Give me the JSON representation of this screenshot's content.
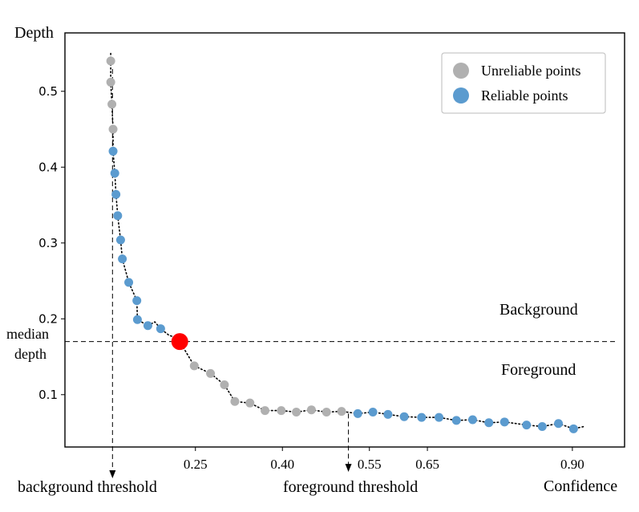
{
  "chart_data": {
    "type": "scatter",
    "title": "",
    "xlabel": "Confidence",
    "ylabel": "Depth",
    "xlim": [
      0.025,
      0.99
    ],
    "ylim": [
      0.031,
      0.577
    ],
    "x_ticks": [
      {
        "value": 0.25,
        "label": "0.25"
      },
      {
        "value": 0.4,
        "label": "0.40"
      },
      {
        "value": 0.55,
        "label": "0.55"
      },
      {
        "value": 0.65,
        "label": "0.65"
      },
      {
        "value": 0.9,
        "label": "0.90"
      }
    ],
    "y_ticks": [
      0.1,
      0.2,
      0.3,
      0.4,
      0.5
    ],
    "y_tick_labels": [
      "0.1",
      "0.2",
      "0.3",
      "0.4",
      "0.5"
    ],
    "legend": {
      "position": "top-right",
      "entries": [
        {
          "label": "Unreliable points",
          "color": "#b0b0b0"
        },
        {
          "label": "Reliable points",
          "color": "#5b9bcf"
        }
      ]
    },
    "series": [
      {
        "name": "Unreliable points",
        "color": "#b0b0b0",
        "points": [
          [
            0.104,
            0.54
          ],
          [
            0.104,
            0.512
          ],
          [
            0.106,
            0.483
          ],
          [
            0.108,
            0.45
          ],
          [
            0.248,
            0.138
          ],
          [
            0.276,
            0.128
          ],
          [
            0.3,
            0.113
          ],
          [
            0.318,
            0.091
          ],
          [
            0.344,
            0.089
          ],
          [
            0.37,
            0.079
          ],
          [
            0.398,
            0.079
          ],
          [
            0.424,
            0.077
          ],
          [
            0.45,
            0.08
          ],
          [
            0.476,
            0.077
          ],
          [
            0.502,
            0.078
          ]
        ]
      },
      {
        "name": "Reliable points",
        "color": "#5b9bcf",
        "points": [
          [
            0.108,
            0.421
          ],
          [
            0.111,
            0.392
          ],
          [
            0.113,
            0.364
          ],
          [
            0.116,
            0.336
          ],
          [
            0.121,
            0.304
          ],
          [
            0.124,
            0.279
          ],
          [
            0.135,
            0.248
          ],
          [
            0.149,
            0.224
          ],
          [
            0.15,
            0.199
          ],
          [
            0.168,
            0.191
          ],
          [
            0.19,
            0.187
          ],
          [
            0.53,
            0.075
          ],
          [
            0.556,
            0.077
          ],
          [
            0.582,
            0.074
          ],
          [
            0.61,
            0.071
          ],
          [
            0.64,
            0.07
          ],
          [
            0.67,
            0.07
          ],
          [
            0.7,
            0.066
          ],
          [
            0.728,
            0.067
          ],
          [
            0.756,
            0.063
          ],
          [
            0.783,
            0.064
          ],
          [
            0.821,
            0.06
          ],
          [
            0.848,
            0.058
          ],
          [
            0.876,
            0.062
          ],
          [
            0.902,
            0.055
          ]
        ]
      }
    ],
    "median_point": {
      "x": 0.223,
      "y": 0.17,
      "color": "#ff0000"
    },
    "median_depth": 0.17,
    "background_threshold": 0.107,
    "foreground_threshold": 0.5,
    "curve": [
      [
        0.104,
        0.55
      ],
      [
        0.104,
        0.54
      ],
      [
        0.104,
        0.512
      ],
      [
        0.106,
        0.483
      ],
      [
        0.108,
        0.45
      ],
      [
        0.108,
        0.421
      ],
      [
        0.111,
        0.392
      ],
      [
        0.113,
        0.364
      ],
      [
        0.116,
        0.336
      ],
      [
        0.121,
        0.304
      ],
      [
        0.124,
        0.279
      ],
      [
        0.135,
        0.248
      ],
      [
        0.149,
        0.224
      ],
      [
        0.15,
        0.199
      ],
      [
        0.168,
        0.191
      ],
      [
        0.18,
        0.196
      ],
      [
        0.19,
        0.187
      ],
      [
        0.205,
        0.178
      ],
      [
        0.215,
        0.176
      ],
      [
        0.223,
        0.17
      ],
      [
        0.248,
        0.138
      ],
      [
        0.276,
        0.128
      ],
      [
        0.3,
        0.113
      ],
      [
        0.318,
        0.091
      ],
      [
        0.344,
        0.089
      ],
      [
        0.37,
        0.079
      ],
      [
        0.398,
        0.079
      ],
      [
        0.424,
        0.077
      ],
      [
        0.45,
        0.08
      ],
      [
        0.476,
        0.077
      ],
      [
        0.502,
        0.078
      ],
      [
        0.53,
        0.075
      ],
      [
        0.556,
        0.077
      ],
      [
        0.582,
        0.074
      ],
      [
        0.61,
        0.071
      ],
      [
        0.64,
        0.07
      ],
      [
        0.67,
        0.07
      ],
      [
        0.7,
        0.066
      ],
      [
        0.728,
        0.067
      ],
      [
        0.756,
        0.063
      ],
      [
        0.783,
        0.064
      ],
      [
        0.821,
        0.06
      ],
      [
        0.848,
        0.058
      ],
      [
        0.876,
        0.062
      ],
      [
        0.902,
        0.055
      ],
      [
        0.92,
        0.058
      ]
    ],
    "annotations": {
      "median_label_line1": "median",
      "median_label_line2": "depth",
      "background_region": "Background",
      "foreground_region": "Foreground",
      "background_threshold_label": "background threshold",
      "foreground_threshold_label": "foreground threshold"
    }
  }
}
